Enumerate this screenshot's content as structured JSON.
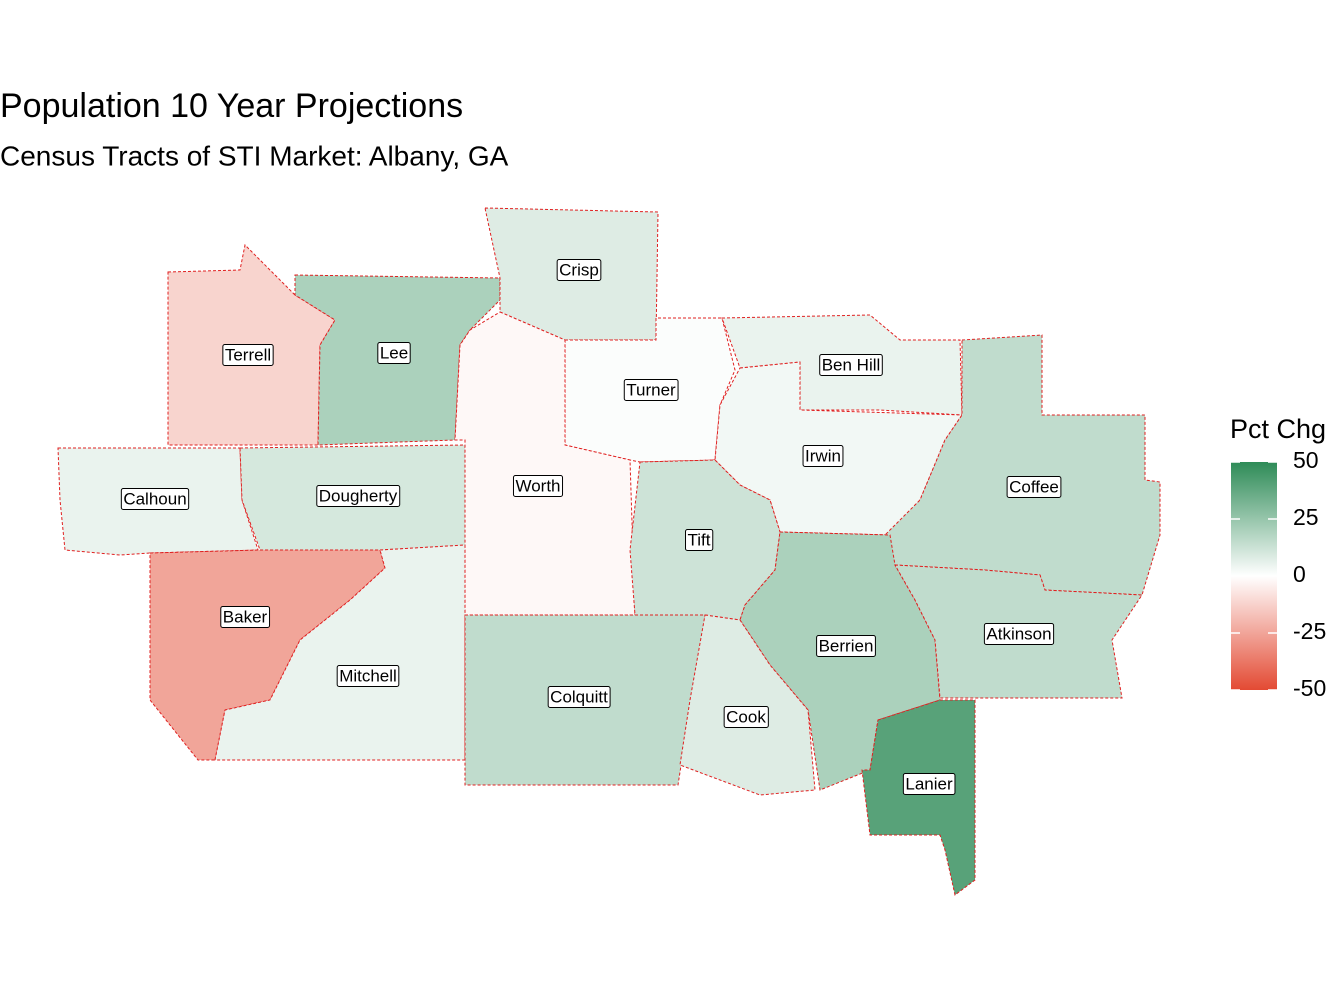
{
  "title": "Population 10 Year Projections",
  "subtitle": "Census Tracts of STI Market: Albany, GA",
  "legend": {
    "title": "Pct Chg",
    "lim": [
      -50,
      50
    ],
    "ticks": [
      50,
      25,
      0,
      -25,
      -50
    ],
    "colors": {
      "low": "#e34a33",
      "mid": "#ffffff",
      "high": "#2e8b57"
    }
  },
  "regions": [
    {
      "name": "Terrell",
      "value": -12
    },
    {
      "name": "Lee",
      "value": 20
    },
    {
      "name": "Crisp",
      "value": 8
    },
    {
      "name": "Turner",
      "value": 1
    },
    {
      "name": "Ben Hill",
      "value": 5
    },
    {
      "name": "Irwin",
      "value": 3
    },
    {
      "name": "Coffee",
      "value": 15
    },
    {
      "name": "Calhoun",
      "value": 5
    },
    {
      "name": "Dougherty",
      "value": 10
    },
    {
      "name": "Worth",
      "value": -2
    },
    {
      "name": "Tift",
      "value": 12
    },
    {
      "name": "Baker",
      "value": -25
    },
    {
      "name": "Mitchell",
      "value": 5
    },
    {
      "name": "Colquitt",
      "value": 15
    },
    {
      "name": "Berrien",
      "value": 20
    },
    {
      "name": "Atkinson",
      "value": 15
    },
    {
      "name": "Cook",
      "value": 8
    },
    {
      "name": "Lanier",
      "value": 40
    }
  ]
}
